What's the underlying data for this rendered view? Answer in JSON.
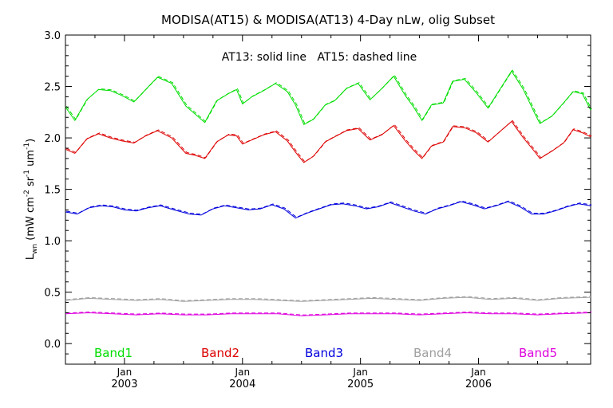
{
  "chart_data": {
    "type": "line",
    "title": "MODISA(AT15) & MODISA(AT13) 4-Day nLw, olig Subset",
    "annotation": "AT13: solid line   AT15: dashed line",
    "ylabel": {
      "base": "L",
      "sub": "wn",
      "p1": " (mW cm",
      "s1": "-2",
      "p2": " sr",
      "s2": "-1",
      "p3": " um",
      "s3": "-1",
      "p4": ")"
    },
    "xlabel": "",
    "ylim": [
      -0.2,
      3.0
    ],
    "xlim": [
      2002.5,
      2006.95
    ],
    "grid": false,
    "legend_position": "bottom-inside",
    "yticks": [
      {
        "v": 0.0,
        "label": "0.0"
      },
      {
        "v": 0.5,
        "label": "0.5"
      },
      {
        "v": 1.0,
        "label": "1.0"
      },
      {
        "v": 1.5,
        "label": "1.5"
      },
      {
        "v": 2.0,
        "label": "2.0"
      },
      {
        "v": 2.5,
        "label": "2.5"
      },
      {
        "v": 3.0,
        "label": "3.0"
      }
    ],
    "xticks": [
      {
        "v": 2003.0,
        "month": "Jan",
        "year": "2003"
      },
      {
        "v": 2004.0,
        "month": "Jan",
        "year": "2004"
      },
      {
        "v": 2005.0,
        "month": "Jan",
        "year": "2005"
      },
      {
        "v": 2006.0,
        "month": "Jan",
        "year": "2006"
      }
    ],
    "series": [
      {
        "name": "Band1",
        "color": "#00dd00",
        "x": [
          2002.5,
          2002.58,
          2002.68,
          2002.78,
          2002.88,
          2002.98,
          2003.08,
          2003.18,
          2003.28,
          2003.4,
          2003.52,
          2003.6,
          2003.68,
          2003.78,
          2003.88,
          2003.95,
          2004.0,
          2004.08,
          2004.18,
          2004.28,
          2004.38,
          2004.45,
          2004.52,
          2004.6,
          2004.7,
          2004.78,
          2004.88,
          2004.98,
          2005.08,
          2005.18,
          2005.28,
          2005.38,
          2005.45,
          2005.52,
          2005.6,
          2005.7,
          2005.78,
          2005.88,
          2005.98,
          2006.08,
          2006.18,
          2006.28,
          2006.38,
          2006.48,
          2006.52,
          2006.62,
          2006.72,
          2006.8,
          2006.88,
          2006.95
        ],
        "values": [
          2.3,
          2.17,
          2.37,
          2.47,
          2.46,
          2.41,
          2.35,
          2.47,
          2.59,
          2.53,
          2.31,
          2.23,
          2.15,
          2.36,
          2.43,
          2.47,
          2.33,
          2.4,
          2.46,
          2.53,
          2.45,
          2.32,
          2.13,
          2.18,
          2.32,
          2.36,
          2.48,
          2.53,
          2.37,
          2.48,
          2.6,
          2.41,
          2.3,
          2.17,
          2.32,
          2.34,
          2.55,
          2.57,
          2.44,
          2.29,
          2.47,
          2.65,
          2.47,
          2.23,
          2.14,
          2.21,
          2.34,
          2.45,
          2.43,
          2.27
        ]
      },
      {
        "name": "Band2",
        "color": "#dd0000",
        "x": [
          2002.5,
          2002.58,
          2002.68,
          2002.78,
          2002.88,
          2002.98,
          2003.08,
          2003.18,
          2003.28,
          2003.4,
          2003.52,
          2003.6,
          2003.68,
          2003.78,
          2003.88,
          2003.95,
          2004.0,
          2004.08,
          2004.18,
          2004.28,
          2004.38,
          2004.45,
          2004.52,
          2004.6,
          2004.7,
          2004.78,
          2004.88,
          2004.98,
          2005.08,
          2005.18,
          2005.28,
          2005.38,
          2005.45,
          2005.52,
          2005.6,
          2005.7,
          2005.78,
          2005.88,
          2005.98,
          2006.08,
          2006.18,
          2006.28,
          2006.38,
          2006.48,
          2006.52,
          2006.62,
          2006.72,
          2006.8,
          2006.88,
          2006.95
        ],
        "values": [
          1.89,
          1.85,
          1.99,
          2.04,
          2.0,
          1.97,
          1.95,
          2.02,
          2.07,
          2.0,
          1.85,
          1.83,
          1.8,
          1.96,
          2.03,
          2.02,
          1.94,
          1.98,
          2.03,
          2.06,
          1.97,
          1.86,
          1.76,
          1.82,
          1.96,
          2.01,
          2.07,
          2.09,
          1.98,
          2.03,
          2.12,
          1.97,
          1.88,
          1.8,
          1.92,
          1.96,
          2.11,
          2.1,
          2.05,
          1.96,
          2.06,
          2.16,
          2.0,
          1.86,
          1.8,
          1.87,
          1.95,
          2.08,
          2.05,
          2.01
        ]
      },
      {
        "name": "Band3",
        "color": "#0000dd",
        "x": [
          2002.5,
          2002.6,
          2002.7,
          2002.8,
          2002.9,
          2003.0,
          2003.1,
          2003.2,
          2003.3,
          2003.42,
          2003.55,
          2003.65,
          2003.75,
          2003.85,
          2003.95,
          2004.05,
          2004.15,
          2004.25,
          2004.35,
          2004.45,
          2004.55,
          2004.65,
          2004.75,
          2004.85,
          2004.95,
          2005.05,
          2005.15,
          2005.25,
          2005.35,
          2005.45,
          2005.55,
          2005.65,
          2005.75,
          2005.85,
          2005.95,
          2006.05,
          2006.15,
          2006.25,
          2006.35,
          2006.45,
          2006.55,
          2006.65,
          2006.75,
          2006.85,
          2006.95
        ],
        "values": [
          1.28,
          1.26,
          1.32,
          1.34,
          1.33,
          1.3,
          1.29,
          1.32,
          1.34,
          1.3,
          1.26,
          1.25,
          1.31,
          1.34,
          1.32,
          1.3,
          1.31,
          1.35,
          1.31,
          1.22,
          1.27,
          1.31,
          1.35,
          1.36,
          1.34,
          1.31,
          1.33,
          1.37,
          1.33,
          1.29,
          1.26,
          1.31,
          1.34,
          1.38,
          1.35,
          1.31,
          1.34,
          1.38,
          1.33,
          1.26,
          1.26,
          1.29,
          1.33,
          1.36,
          1.34
        ]
      },
      {
        "name": "Band4",
        "color": "#a0a0a0",
        "x": [
          2002.5,
          2002.7,
          2002.9,
          2003.1,
          2003.3,
          2003.5,
          2003.7,
          2003.9,
          2004.1,
          2004.3,
          2004.5,
          2004.7,
          2004.9,
          2005.1,
          2005.3,
          2005.5,
          2005.7,
          2005.9,
          2006.1,
          2006.3,
          2006.5,
          2006.7,
          2006.95
        ],
        "values": [
          0.42,
          0.44,
          0.43,
          0.42,
          0.43,
          0.41,
          0.42,
          0.43,
          0.43,
          0.42,
          0.41,
          0.42,
          0.43,
          0.44,
          0.43,
          0.42,
          0.44,
          0.45,
          0.43,
          0.44,
          0.42,
          0.44,
          0.45
        ]
      },
      {
        "name": "Band5",
        "color": "#dd00dd",
        "x": [
          2002.5,
          2002.7,
          2002.9,
          2003.1,
          2003.3,
          2003.5,
          2003.7,
          2003.9,
          2004.1,
          2004.3,
          2004.5,
          2004.7,
          2004.9,
          2005.1,
          2005.3,
          2005.5,
          2005.7,
          2005.9,
          2006.1,
          2006.3,
          2006.5,
          2006.7,
          2006.95
        ],
        "values": [
          0.29,
          0.3,
          0.29,
          0.28,
          0.29,
          0.28,
          0.28,
          0.29,
          0.29,
          0.29,
          0.27,
          0.28,
          0.29,
          0.29,
          0.29,
          0.28,
          0.29,
          0.3,
          0.29,
          0.29,
          0.28,
          0.29,
          0.3
        ]
      }
    ]
  }
}
